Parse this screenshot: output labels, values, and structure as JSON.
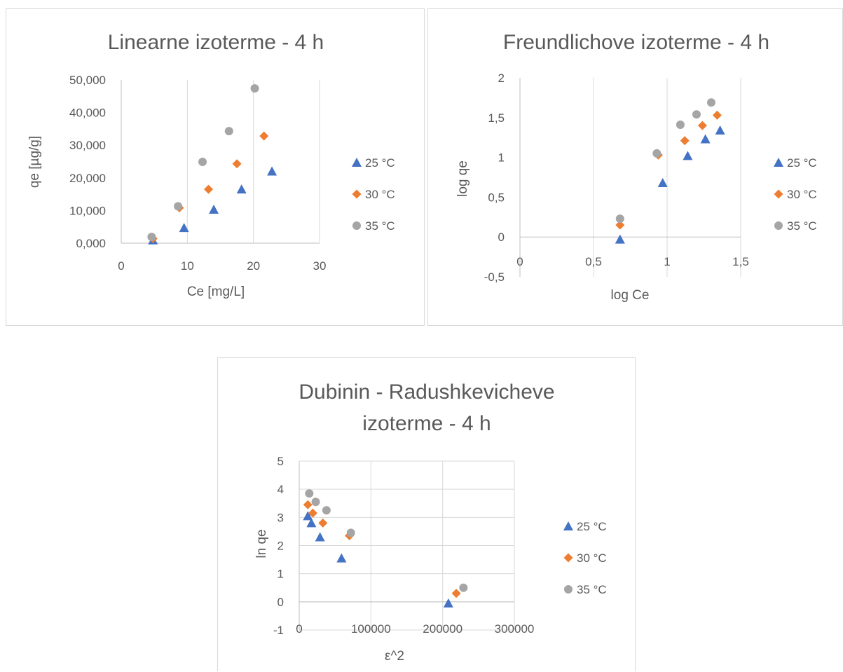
{
  "chart_data": [
    {
      "type": "scatter",
      "title": "Linearne izoterme - 4 h",
      "xlabel": "Ce [mg/L]",
      "ylabel": "qe [µg/g]",
      "xlim": [
        0,
        30
      ],
      "ylim": [
        0,
        50
      ],
      "xticks": [
        "0",
        "10",
        "20",
        "30"
      ],
      "yticks": [
        "0,000",
        "10,000",
        "20,000",
        "30,000",
        "40,000",
        "50,000"
      ],
      "grid": "vertical",
      "legend_position": "right",
      "series": [
        {
          "name": "25 °C",
          "color": "#4472c4",
          "marker": "triangle",
          "points": [
            [
              4.8,
              0.9
            ],
            [
              9.5,
              4.7
            ],
            [
              14.0,
              10.3
            ],
            [
              18.2,
              16.5
            ],
            [
              22.8,
              22.0
            ]
          ]
        },
        {
          "name": "30 °C",
          "color": "#ed7d31",
          "marker": "diamond",
          "points": [
            [
              4.8,
              1.4
            ],
            [
              8.8,
              10.8
            ],
            [
              13.2,
              16.5
            ],
            [
              17.5,
              24.3
            ],
            [
              21.6,
              32.8
            ]
          ]
        },
        {
          "name": "35 °C",
          "color": "#a5a5a5",
          "marker": "circle",
          "points": [
            [
              4.6,
              1.9
            ],
            [
              8.6,
              11.3
            ],
            [
              12.3,
              24.9
            ],
            [
              16.3,
              34.3
            ],
            [
              20.2,
              47.4
            ]
          ]
        }
      ]
    },
    {
      "type": "scatter",
      "title": "Freundlichove izoterme - 4 h",
      "xlabel": "log Ce",
      "ylabel": "log qe",
      "xlim": [
        0,
        1.5
      ],
      "ylim": [
        -0.5,
        2
      ],
      "xticks": [
        "0",
        "0,5",
        "1",
        "1,5"
      ],
      "yticks": [
        "-0,5",
        "0",
        "0,5",
        "1",
        "1,5",
        "2"
      ],
      "grid": "vertical",
      "legend_position": "right",
      "series": [
        {
          "name": "25 °C",
          "color": "#4472c4",
          "marker": "triangle",
          "points": [
            [
              0.68,
              -0.03
            ],
            [
              0.97,
              0.68
            ],
            [
              1.14,
              1.02
            ],
            [
              1.26,
              1.23
            ],
            [
              1.36,
              1.34
            ]
          ]
        },
        {
          "name": "30 °C",
          "color": "#ed7d31",
          "marker": "diamond",
          "points": [
            [
              0.68,
              0.15
            ],
            [
              0.94,
              1.03
            ],
            [
              1.12,
              1.21
            ],
            [
              1.24,
              1.4
            ],
            [
              1.34,
              1.53
            ]
          ]
        },
        {
          "name": "35 °C",
          "color": "#a5a5a5",
          "marker": "circle",
          "points": [
            [
              0.68,
              0.23
            ],
            [
              0.93,
              1.05
            ],
            [
              1.09,
              1.41
            ],
            [
              1.2,
              1.54
            ],
            [
              1.3,
              1.69
            ]
          ]
        }
      ]
    },
    {
      "type": "scatter",
      "title": "Dubinin - Radushkevicheve izoterme - 4 h",
      "title_lines": [
        "Dubinin - Radushkevicheve",
        "izoterme - 4 h"
      ],
      "xlabel": "ε^2",
      "ylabel": "ln qe",
      "xlim": [
        0,
        300000
      ],
      "ylim": [
        -1,
        5
      ],
      "xticks": [
        "0",
        "100000",
        "200000",
        "300000"
      ],
      "yticks": [
        "-1",
        "0",
        "1",
        "2",
        "3",
        "4",
        "5"
      ],
      "grid": "both",
      "legend_position": "right",
      "series": [
        {
          "name": "25 °C",
          "color": "#4472c4",
          "marker": "triangle",
          "points": [
            [
              12000,
              3.05
            ],
            [
              17000,
              2.8
            ],
            [
              29000,
              2.3
            ],
            [
              59000,
              1.55
            ],
            [
              208000,
              -0.05
            ]
          ]
        },
        {
          "name": "30 °C",
          "color": "#ed7d31",
          "marker": "diamond",
          "points": [
            [
              12000,
              3.45
            ],
            [
              19000,
              3.15
            ],
            [
              33000,
              2.8
            ],
            [
              70000,
              2.35
            ],
            [
              219000,
              0.3
            ]
          ]
        },
        {
          "name": "35 °C",
          "color": "#a5a5a5",
          "marker": "circle",
          "points": [
            [
              14000,
              3.85
            ],
            [
              23000,
              3.55
            ],
            [
              38000,
              3.25
            ],
            [
              72000,
              2.45
            ],
            [
              229000,
              0.5
            ]
          ]
        }
      ]
    }
  ]
}
